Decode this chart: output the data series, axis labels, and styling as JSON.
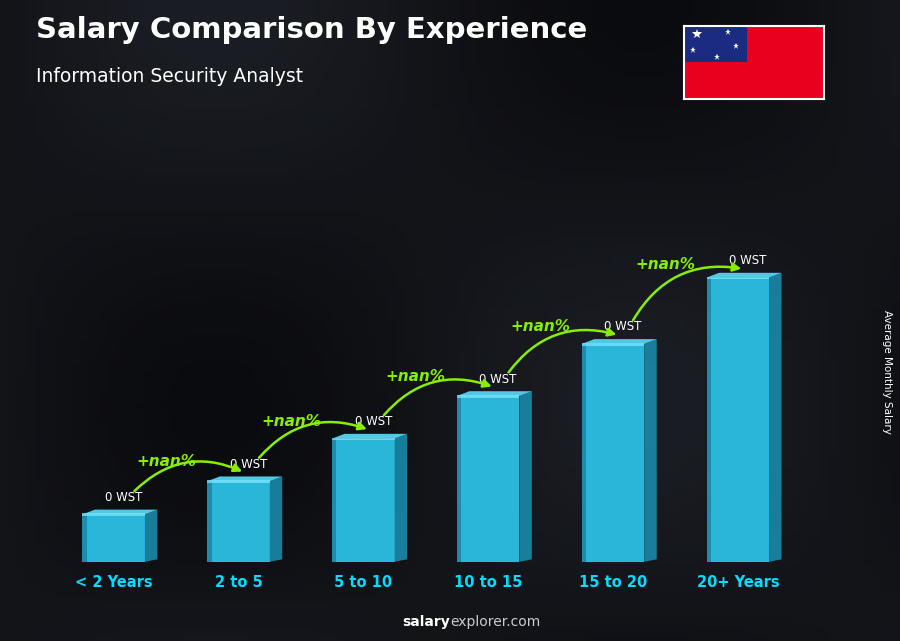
{
  "title": "Salary Comparison By Experience",
  "subtitle": "Information Security Analyst",
  "categories": [
    "< 2 Years",
    "2 to 5",
    "5 to 10",
    "10 to 15",
    "15 to 20",
    "20+ Years"
  ],
  "bar_labels": [
    "0 WST",
    "0 WST",
    "0 WST",
    "0 WST",
    "0 WST",
    "0 WST"
  ],
  "pct_labels": [
    "+nan%",
    "+nan%",
    "+nan%",
    "+nan%",
    "+nan%"
  ],
  "pct_color": "#88ee00",
  "bar_face_color": "#29b6d8",
  "bar_right_color": "#1a8aaa",
  "bar_top_color": "#55d4f0",
  "bar_highlight_color": "#80e8ff",
  "xlabel_color": "#00ddff",
  "ylabel_text": "Average Monthly Salary",
  "footer_salary_color": "#ffffff",
  "footer_explorer_color": "#aaaaaa",
  "bar_heights": [
    1.0,
    1.7,
    2.6,
    3.5,
    4.6,
    6.0
  ],
  "flag_red": "#e8001e",
  "flag_blue": "#1c2b82",
  "bg_dark": "#0d0d14"
}
